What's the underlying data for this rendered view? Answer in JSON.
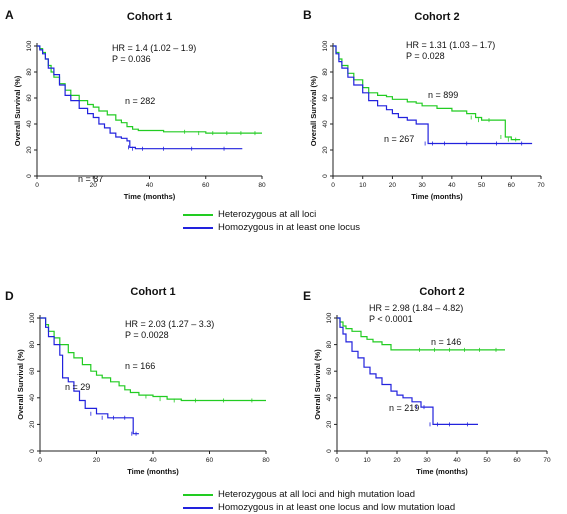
{
  "legend_top": {
    "items": [
      {
        "label": "Heterozygous at all loci",
        "color": "#22cc22"
      },
      {
        "label": "Homozygous in at least one locus",
        "color": "#2222dd"
      }
    ]
  },
  "legend_bottom": {
    "items": [
      {
        "label": "Heterozygous at all loci and high mutation load",
        "color": "#22cc22"
      },
      {
        "label": "Homozygous in at least one locus and low mutation load",
        "color": "#2222dd"
      }
    ]
  },
  "chart_data": [
    {
      "panel": "A",
      "type": "line",
      "title": "Cohort 1",
      "xlabel": "Time (months)",
      "ylabel": "Overall Survival (%)",
      "xlim": [
        0,
        80
      ],
      "ylim": [
        0,
        100
      ],
      "xticks": [
        0,
        20,
        40,
        60,
        80
      ],
      "yticks": [
        0,
        20,
        40,
        60,
        80,
        100
      ],
      "stats": [
        "HR = 1.4 (1.02 – 1.9)",
        "P = 0.036"
      ],
      "series": [
        {
          "color": "#22cc22",
          "annotation": "n = 282",
          "x": [
            0,
            1,
            2,
            3,
            4,
            5,
            6,
            8,
            10,
            12,
            15,
            18,
            20,
            22,
            25,
            28,
            30,
            32,
            34,
            36,
            40,
            45,
            50,
            55,
            60,
            65,
            70,
            75,
            80
          ],
          "y": [
            100,
            98,
            95,
            90,
            85,
            80,
            76,
            71,
            66,
            62,
            58,
            55,
            53,
            50,
            47,
            43,
            41,
            38,
            36,
            35,
            35,
            34,
            34,
            34,
            33,
            33,
            33,
            33,
            33
          ]
        },
        {
          "color": "#2222dd",
          "annotation": "n = 87",
          "x": [
            0,
            1,
            2,
            3,
            4,
            6,
            8,
            10,
            12,
            15,
            18,
            20,
            22,
            24,
            26,
            28,
            30,
            32,
            33,
            35,
            40,
            50,
            60,
            73
          ],
          "y": [
            100,
            97,
            94,
            90,
            83,
            78,
            70,
            62,
            58,
            52,
            48,
            45,
            40,
            37,
            33,
            30,
            29,
            27,
            22,
            21,
            21,
            21,
            21,
            21
          ]
        }
      ]
    },
    {
      "panel": "B",
      "type": "line",
      "title": "Cohort 2",
      "xlabel": "Time (months)",
      "ylabel": "Overall Survival (%)",
      "xlim": [
        0,
        70
      ],
      "ylim": [
        0,
        100
      ],
      "xticks": [
        0,
        10,
        20,
        30,
        40,
        50,
        60,
        70
      ],
      "yticks": [
        0,
        20,
        40,
        60,
        80,
        100
      ],
      "stats": [
        "HR = 1.31 (1.03 – 1.7)",
        "P = 0.028"
      ],
      "series": [
        {
          "color": "#22cc22",
          "annotation": "n = 899",
          "x": [
            0,
            1,
            2,
            3,
            5,
            7,
            10,
            12,
            15,
            18,
            20,
            25,
            28,
            30,
            35,
            40,
            45,
            48,
            50,
            55,
            58,
            60,
            63
          ],
          "y": [
            100,
            95,
            90,
            85,
            79,
            74,
            68,
            64,
            62,
            61,
            59,
            57,
            56,
            54,
            52,
            50,
            48,
            45,
            43,
            43,
            30,
            28,
            28
          ]
        },
        {
          "color": "#2222dd",
          "annotation": "n = 267",
          "x": [
            0,
            1,
            2,
            3,
            5,
            7,
            10,
            12,
            15,
            18,
            20,
            22,
            25,
            28,
            30,
            32,
            35,
            40,
            50,
            60,
            67
          ],
          "y": [
            100,
            94,
            88,
            83,
            76,
            70,
            64,
            58,
            54,
            51,
            48,
            45,
            43,
            40,
            40,
            25,
            25,
            25,
            25,
            25,
            25
          ]
        }
      ]
    },
    {
      "panel": "D",
      "type": "line",
      "title": "Cohort 1",
      "xlabel": "Time (months)",
      "ylabel": "Overall Survival (%)",
      "xlim": [
        0,
        80
      ],
      "ylim": [
        0,
        100
      ],
      "xticks": [
        0,
        20,
        40,
        60,
        80
      ],
      "yticks": [
        0,
        20,
        40,
        60,
        80,
        100
      ],
      "stats": [
        "HR = 2.03 (1.27 – 3.3)",
        "P = 0.0028"
      ],
      "series": [
        {
          "color": "#22cc22",
          "annotation": "n = 166",
          "x": [
            0,
            2,
            3,
            5,
            7,
            10,
            12,
            15,
            18,
            20,
            22,
            25,
            28,
            30,
            32,
            35,
            40,
            45,
            50,
            60,
            70,
            80
          ],
          "y": [
            100,
            95,
            90,
            85,
            80,
            74,
            70,
            65,
            60,
            57,
            55,
            52,
            49,
            46,
            44,
            42,
            41,
            39,
            38,
            38,
            38,
            38
          ]
        },
        {
          "color": "#2222dd",
          "annotation": "n = 29",
          "x": [
            0,
            2,
            3,
            5,
            7,
            8,
            10,
            12,
            14,
            16,
            20,
            24,
            28,
            32,
            33,
            35
          ],
          "y": [
            100,
            93,
            86,
            80,
            72,
            55,
            52,
            45,
            38,
            32,
            28,
            25,
            25,
            25,
            13,
            13
          ]
        }
      ]
    },
    {
      "panel": "E",
      "type": "line",
      "title": "Cohort 2",
      "xlabel": "Time (months)",
      "ylabel": "Overall Survival (%)",
      "xlim": [
        0,
        70
      ],
      "ylim": [
        0,
        100
      ],
      "xticks": [
        0,
        10,
        20,
        30,
        40,
        50,
        60,
        70
      ],
      "yticks": [
        0,
        20,
        40,
        60,
        80,
        100
      ],
      "stats": [
        "HR = 2.98 (1.84 – 4.82)",
        "P < 0.0001"
      ],
      "series": [
        {
          "color": "#22cc22",
          "annotation": "n = 146",
          "x": [
            0,
            1,
            2,
            3,
            5,
            8,
            10,
            12,
            15,
            18,
            20,
            25,
            30,
            35,
            40,
            45,
            50,
            56
          ],
          "y": [
            100,
            97,
            94,
            92,
            90,
            86,
            84,
            82,
            80,
            76,
            76,
            76,
            76,
            76,
            76,
            76,
            76,
            76
          ]
        },
        {
          "color": "#2222dd",
          "annotation": "n = 219",
          "x": [
            0,
            1,
            2,
            3,
            5,
            7,
            9,
            11,
            13,
            15,
            18,
            20,
            22,
            25,
            28,
            30,
            32,
            35,
            40,
            47
          ],
          "y": [
            100,
            93,
            88,
            82,
            75,
            70,
            63,
            58,
            55,
            50,
            45,
            42,
            40,
            37,
            33,
            33,
            20,
            20,
            20,
            20
          ]
        }
      ]
    }
  ]
}
